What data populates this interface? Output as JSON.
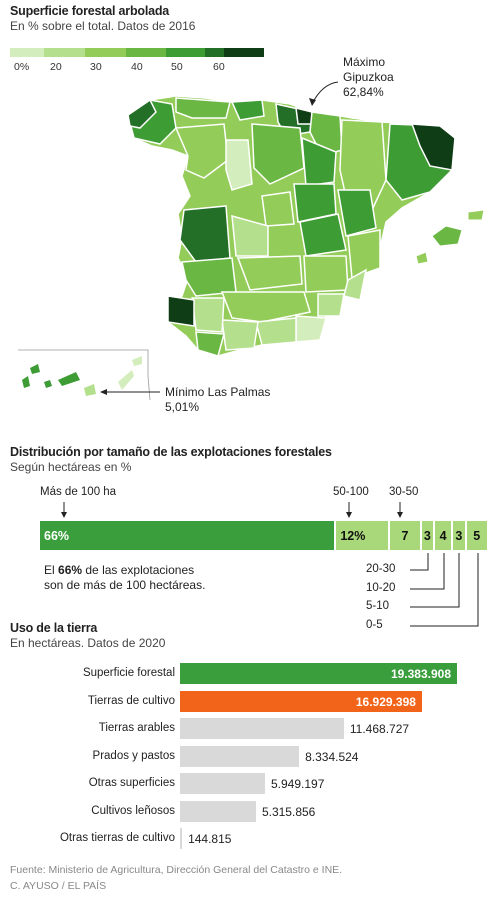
{
  "map_section": {
    "title": "Superficie forestal arbolada",
    "subtitle": "En % sobre el total. Datos de 2016",
    "legend": {
      "colors": [
        "#d3eebc",
        "#b4df8d",
        "#93cc58",
        "#6bb743",
        "#3e9c35",
        "#236f27",
        "#0f3d15"
      ],
      "ticks": [
        "0%",
        "20",
        "30",
        "40",
        "50",
        "60"
      ]
    },
    "max_label": {
      "line1": "Máximo",
      "line2": "Gipuzkoa",
      "value": "62,84%"
    },
    "min_label": {
      "line1": "Mínimo Las Palmas",
      "value": "5,01%"
    }
  },
  "dist_section": {
    "title": "Distribución por tamaño de las explotaciones forestales",
    "subtitle": "Según hectáreas en %",
    "top_labels": {
      "a": "Más de 100 ha",
      "b": "50-100",
      "c": "30-50"
    },
    "note_pre": "El ",
    "note_bold": "66%",
    "note_post": " de las explotaciones",
    "note_line2": "son de más de 100 hectáreas.",
    "bottom_labels": [
      "20-30",
      "10-20",
      "5-10",
      "0-5"
    ]
  },
  "land_section": {
    "title": "Uso de la tierra",
    "subtitle": "En hectáreas. Datos de 2020"
  },
  "colors": {
    "forest": "#3b9e3c",
    "crop": "#f26419",
    "grey": "#d9d9d9",
    "light": "#a9d87a"
  },
  "footer": {
    "source": "Fuente: Ministerio de Agricultura, Dirección General del Catastro e INE.",
    "credit": "C. AYUSO / EL PAÍS"
  },
  "chart_data": [
    {
      "type": "bar",
      "orientation": "stacked-horizontal",
      "title": "Distribución por tamaño de las explotaciones forestales",
      "subtitle": "Según hectáreas en %",
      "categories": [
        "Más de 100 ha",
        "50-100",
        "30-50",
        "20-30",
        "10-20",
        "5-10",
        "0-5"
      ],
      "values": [
        66,
        12,
        7,
        3,
        4,
        3,
        5
      ],
      "labels": [
        "66%",
        "12%",
        "7",
        "3",
        "4",
        "3",
        "5"
      ]
    },
    {
      "type": "bar",
      "orientation": "horizontal",
      "title": "Uso de la tierra",
      "subtitle": "En hectáreas. Datos de 2020",
      "categories": [
        "Superficie forestal",
        "Tierras de cultivo",
        "Tierras arables",
        "Prados y pastos",
        "Otras superficies",
        "Cultivos leñosos",
        "Otras tierras de cultivo"
      ],
      "values": [
        19383908,
        16929398,
        11468727,
        8334524,
        5949197,
        5315856,
        144815
      ],
      "labels": [
        "19.383.908",
        "16.929.398",
        "11.468.727",
        "8.334.524",
        "5.949.197",
        "5.315.856",
        "144.815"
      ]
    }
  ]
}
